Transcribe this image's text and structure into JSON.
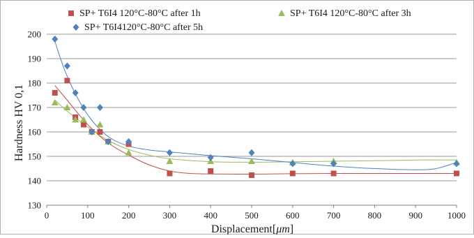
{
  "chart_data": {
    "type": "scatter",
    "title": "",
    "xlabel_prefix": "Displacement[",
    "xlabel_unit": "μm",
    "xlabel_suffix": "]",
    "ylabel": "Hardness HV 0,1",
    "xlim": [
      0,
      1000
    ],
    "ylim": [
      130,
      200
    ],
    "xticks": [
      0,
      100,
      200,
      300,
      400,
      500,
      600,
      700,
      800,
      900,
      1000
    ],
    "yticks": [
      130,
      140,
      150,
      160,
      170,
      180,
      190,
      200
    ],
    "grid": true,
    "legend_position": "top",
    "series": [
      {
        "name": "SP+ T6I4 120°C-80°C after 1h",
        "marker": "square",
        "color": "#c0504d",
        "x": [
          20,
          50,
          70,
          90,
          110,
          130,
          150,
          200,
          300,
          400,
          500,
          600,
          700,
          1000
        ],
        "y": [
          176,
          181,
          166,
          163,
          160,
          160,
          156,
          155,
          143,
          144,
          142.3,
          143,
          143,
          143
        ],
        "trend": [
          [
            20,
            179
          ],
          [
            50,
            173
          ],
          [
            100,
            163
          ],
          [
            150,
            155.5
          ],
          [
            200,
            150.5
          ],
          [
            250,
            146.5
          ],
          [
            300,
            144
          ],
          [
            350,
            143
          ],
          [
            400,
            142.8
          ],
          [
            500,
            142.7
          ],
          [
            600,
            142.9
          ],
          [
            700,
            143
          ],
          [
            800,
            143
          ],
          [
            900,
            143
          ],
          [
            1000,
            143
          ]
        ]
      },
      {
        "name": "SP+ T6I4 120°C-80°C after 3h",
        "marker": "triangle",
        "color": "#9bbb59",
        "x": [
          20,
          50,
          70,
          90,
          110,
          130,
          150,
          200,
          300,
          400,
          500,
          600,
          700,
          1000
        ],
        "y": [
          172,
          170,
          165,
          165,
          160,
          163,
          156,
          151.5,
          148,
          148,
          148,
          147.5,
          148,
          147.5
        ],
        "trend": [
          [
            20,
            173
          ],
          [
            50,
            168.5
          ],
          [
            100,
            162
          ],
          [
            150,
            156.5
          ],
          [
            200,
            152.8
          ],
          [
            250,
            150.5
          ],
          [
            300,
            149
          ],
          [
            400,
            147.8
          ],
          [
            500,
            147.6
          ],
          [
            600,
            147.8
          ],
          [
            700,
            148
          ],
          [
            800,
            148.2
          ],
          [
            900,
            148.5
          ],
          [
            1000,
            148.5
          ]
        ]
      },
      {
        "name": "SP+ T6I4120°C-80°C after 5h",
        "marker": "diamond",
        "color": "#4f81bd",
        "x": [
          20,
          50,
          70,
          90,
          110,
          130,
          150,
          200,
          300,
          400,
          500,
          600,
          700,
          1000
        ],
        "y": [
          198,
          187,
          176,
          170,
          160,
          170,
          156,
          156,
          151.5,
          149.5,
          151.5,
          147,
          147,
          147
        ],
        "trend": [
          [
            20,
            197
          ],
          [
            40,
            187
          ],
          [
            60,
            179
          ],
          [
            80,
            172.5
          ],
          [
            100,
            167
          ],
          [
            130,
            161
          ],
          [
            160,
            157
          ],
          [
            200,
            154.2
          ],
          [
            250,
            152.6
          ],
          [
            300,
            151.8
          ],
          [
            400,
            150.3
          ],
          [
            500,
            149
          ],
          [
            600,
            147.5
          ],
          [
            700,
            146
          ],
          [
            800,
            145
          ],
          [
            900,
            144.5
          ],
          [
            950,
            145
          ],
          [
            1000,
            147.5
          ]
        ]
      }
    ]
  }
}
